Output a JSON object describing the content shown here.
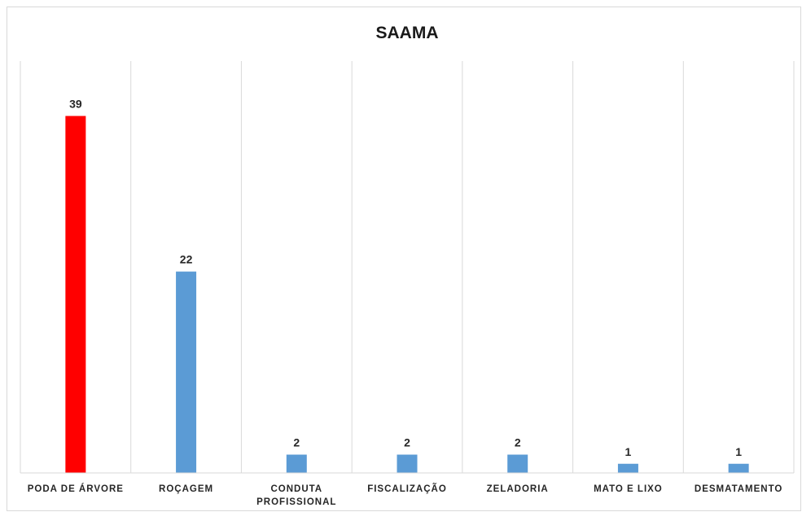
{
  "chart_data": {
    "type": "bar",
    "title": "SAAMA",
    "xlabel": "",
    "ylabel": "",
    "ylim": [
      0,
      45
    ],
    "grid": "vertical category separators",
    "legend": "none",
    "categories": [
      [
        "PODA DE ÁRVORE"
      ],
      [
        "ROÇAGEM"
      ],
      [
        "CONDUTA",
        "PROFISSIONAL"
      ],
      [
        "FISCALIZAÇÃO"
      ],
      [
        "ZELADORIA"
      ],
      [
        "MATO E LIXO"
      ],
      [
        "DESMATAMENTO"
      ]
    ],
    "values": [
      39,
      22,
      2,
      2,
      2,
      1,
      1
    ],
    "data_labels": [
      "39",
      "22",
      "2",
      "2",
      "2",
      "1",
      "1"
    ],
    "colors": [
      "#ff0000",
      "#5b9bd5",
      "#5b9bd5",
      "#5b9bd5",
      "#5b9bd5",
      "#5b9bd5",
      "#5b9bd5"
    ]
  }
}
